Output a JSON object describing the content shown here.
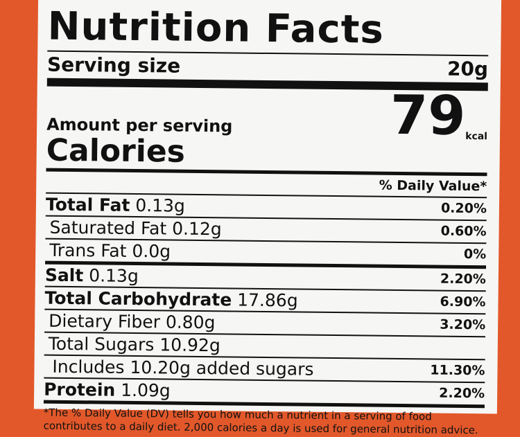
{
  "title": "Nutrition Facts",
  "serving": {
    "label": "Serving size",
    "value": "20g"
  },
  "amount_per_serving": "Amount per serving",
  "calories": {
    "label": "Calories",
    "value": "79",
    "unit": "kcal"
  },
  "daily_value_header": "% Daily Value*",
  "rows": [
    {
      "name": "Total Fat",
      "amount": "0.13g",
      "dv": "0.20%",
      "bold": true
    },
    {
      "name": "Saturated Fat",
      "amount": "0.12g",
      "dv": "0.60%",
      "indent": true
    },
    {
      "name": "Trans Fat",
      "amount": "0.0g",
      "dv": "0%",
      "indent": true
    },
    {
      "name": "Salt",
      "amount": "0.13g",
      "dv": "2.20%",
      "bold": true
    },
    {
      "name": "Total Carbohydrate",
      "amount": "17.86g",
      "dv": "6.90%",
      "bold": true
    },
    {
      "name": "Dietary Fiber",
      "amount": "0.80g",
      "dv": "3.20%",
      "indent": true
    },
    {
      "name": "Total Sugars",
      "amount": "10.92g",
      "indent": true
    },
    {
      "name": "Includes 10.20g added sugars",
      "dv": "11.30%",
      "indent": true,
      "deep": true
    },
    {
      "name": "Protein",
      "amount": "1.09g",
      "dv": "2.20%",
      "bold": true
    }
  ],
  "footnote": "*The % Daily Value (DV) tells you how much a nutrient in a serving of food contributes to a daily diet. 2,000 calories a day is used for general nutrition advice."
}
